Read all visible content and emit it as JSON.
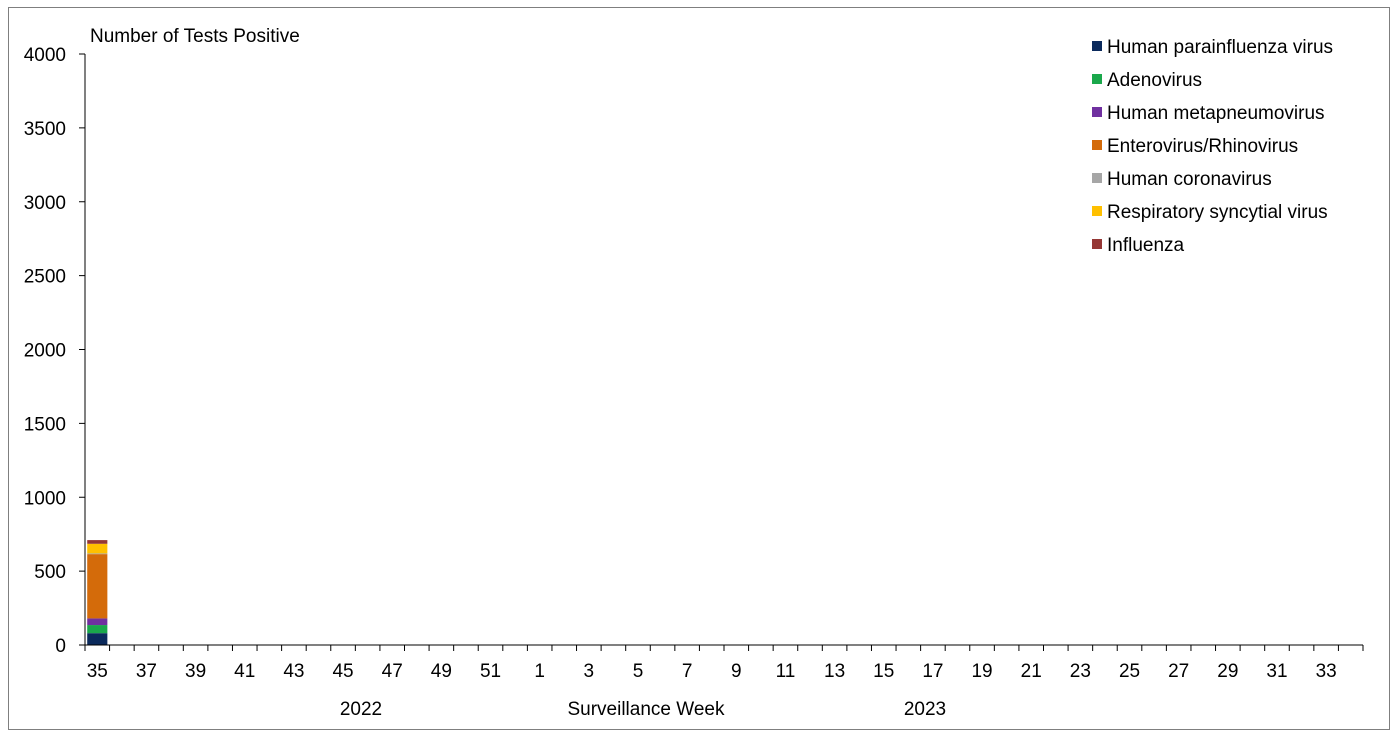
{
  "chart_data": {
    "type": "bar",
    "stacked": true,
    "ylabel": "Number of Tests Positive",
    "xlabel": "Surveillance Week",
    "ylim": [
      0,
      4000
    ],
    "yticks": [
      "0",
      "500",
      "1000",
      "1500",
      "2000",
      "2500",
      "3000",
      "3500",
      "4000"
    ],
    "ytick_values": [
      0,
      500,
      1000,
      1500,
      2000,
      2500,
      3000,
      3500,
      4000
    ],
    "weeks": [
      35,
      36,
      37,
      38,
      39,
      40,
      41,
      42,
      43,
      44,
      45,
      46,
      47,
      48,
      49,
      50,
      51,
      52,
      1,
      2,
      3,
      4,
      5,
      6,
      7,
      8,
      9,
      10,
      11,
      12,
      13,
      14,
      15,
      16,
      17,
      18,
      19,
      20,
      21,
      22,
      23,
      24,
      25,
      26,
      27,
      28,
      29,
      30,
      31,
      32,
      33,
      34
    ],
    "xtick_labels": [
      "35",
      "37",
      "39",
      "41",
      "43",
      "45",
      "47",
      "49",
      "51",
      "1",
      "3",
      "5",
      "7",
      "9",
      "11",
      "13",
      "15",
      "17",
      "19",
      "21",
      "23",
      "25",
      "27",
      "29",
      "31",
      "33"
    ],
    "year_labels": [
      "2022",
      "2023"
    ],
    "legend_position": "top-right",
    "series": [
      {
        "name": "Human parainfluenza virus",
        "color": "#0b2a5c",
        "values": [
          80
        ]
      },
      {
        "name": "Adenovirus",
        "color": "#1aa84b",
        "values": [
          55
        ]
      },
      {
        "name": "Human metapneumovirus",
        "color": "#7030a0",
        "values": [
          45
        ]
      },
      {
        "name": "Enterovirus/Rhinovirus",
        "color": "#d46b0a",
        "values": [
          435
        ]
      },
      {
        "name": "Human coronavirus",
        "color": "#a6a6a6",
        "values": [
          5
        ]
      },
      {
        "name": "Respiratory syncytial virus",
        "color": "#ffc000",
        "values": [
          65
        ]
      },
      {
        "name": "Influenza",
        "color": "#953735",
        "values": [
          25
        ]
      }
    ]
  }
}
